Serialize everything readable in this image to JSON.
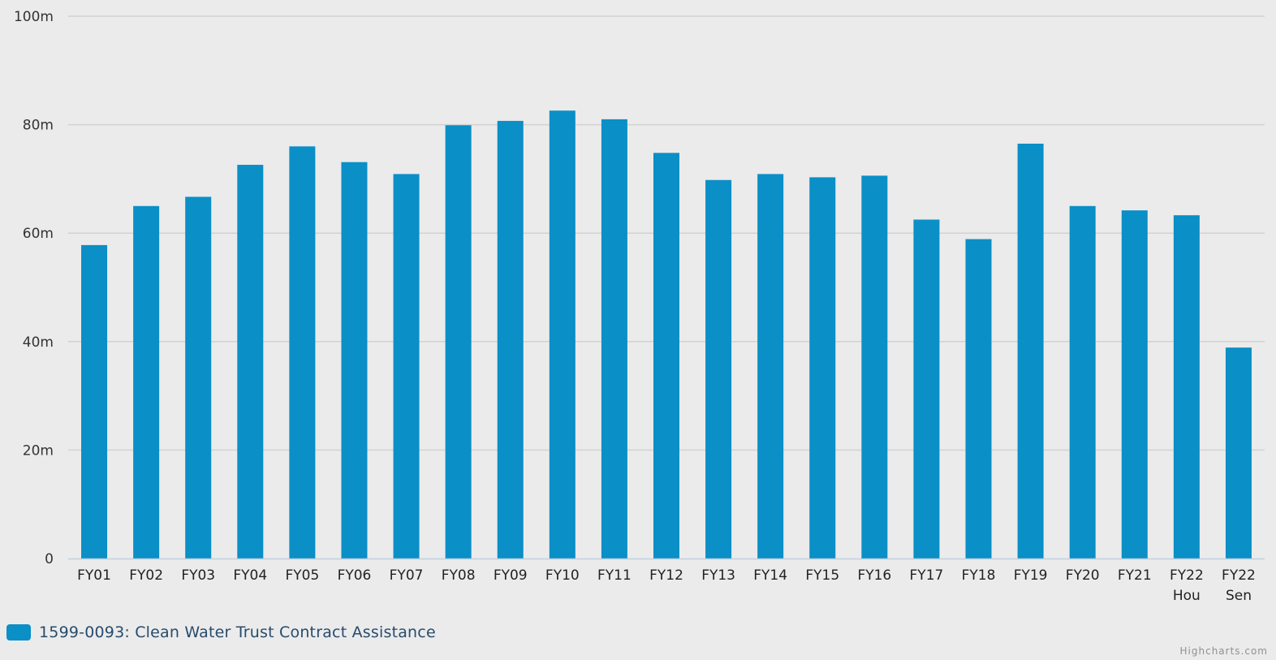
{
  "chart_data": {
    "type": "bar",
    "categories": [
      [
        "FY01"
      ],
      [
        "FY02"
      ],
      [
        "FY03"
      ],
      [
        "FY04"
      ],
      [
        "FY05"
      ],
      [
        "FY06"
      ],
      [
        "FY07"
      ],
      [
        "FY08"
      ],
      [
        "FY09"
      ],
      [
        "FY10"
      ],
      [
        "FY11"
      ],
      [
        "FY12"
      ],
      [
        "FY13"
      ],
      [
        "FY14"
      ],
      [
        "FY15"
      ],
      [
        "FY16"
      ],
      [
        "FY17"
      ],
      [
        "FY18"
      ],
      [
        "FY19"
      ],
      [
        "FY20"
      ],
      [
        "FY21"
      ],
      [
        "FY22",
        "Hou"
      ],
      [
        "FY22",
        "Sen"
      ]
    ],
    "series": [
      {
        "name": "1599-0093: Clean Water Trust Contract Assistance",
        "color": "#0a8fc7",
        "values": [
          57.8,
          65.0,
          66.7,
          72.6,
          76.0,
          73.1,
          70.9,
          79.9,
          80.7,
          82.6,
          81.0,
          74.8,
          69.8,
          70.9,
          70.3,
          70.6,
          62.5,
          58.9,
          76.5,
          65.0,
          64.2,
          63.3,
          38.9
        ]
      }
    ],
    "y_ticks": [
      {
        "value": 0,
        "label": "0"
      },
      {
        "value": 20,
        "label": "20m"
      },
      {
        "value": 40,
        "label": "40m"
      },
      {
        "value": 60,
        "label": "60m"
      },
      {
        "value": 80,
        "label": "80m"
      },
      {
        "value": 100,
        "label": "100m"
      }
    ],
    "ylim": [
      0,
      100
    ],
    "grid": true,
    "legend_position": "bottom-left",
    "credits": "Highcharts.com",
    "background": "#ebebeb",
    "gridline_color": "#d2d2d2"
  }
}
